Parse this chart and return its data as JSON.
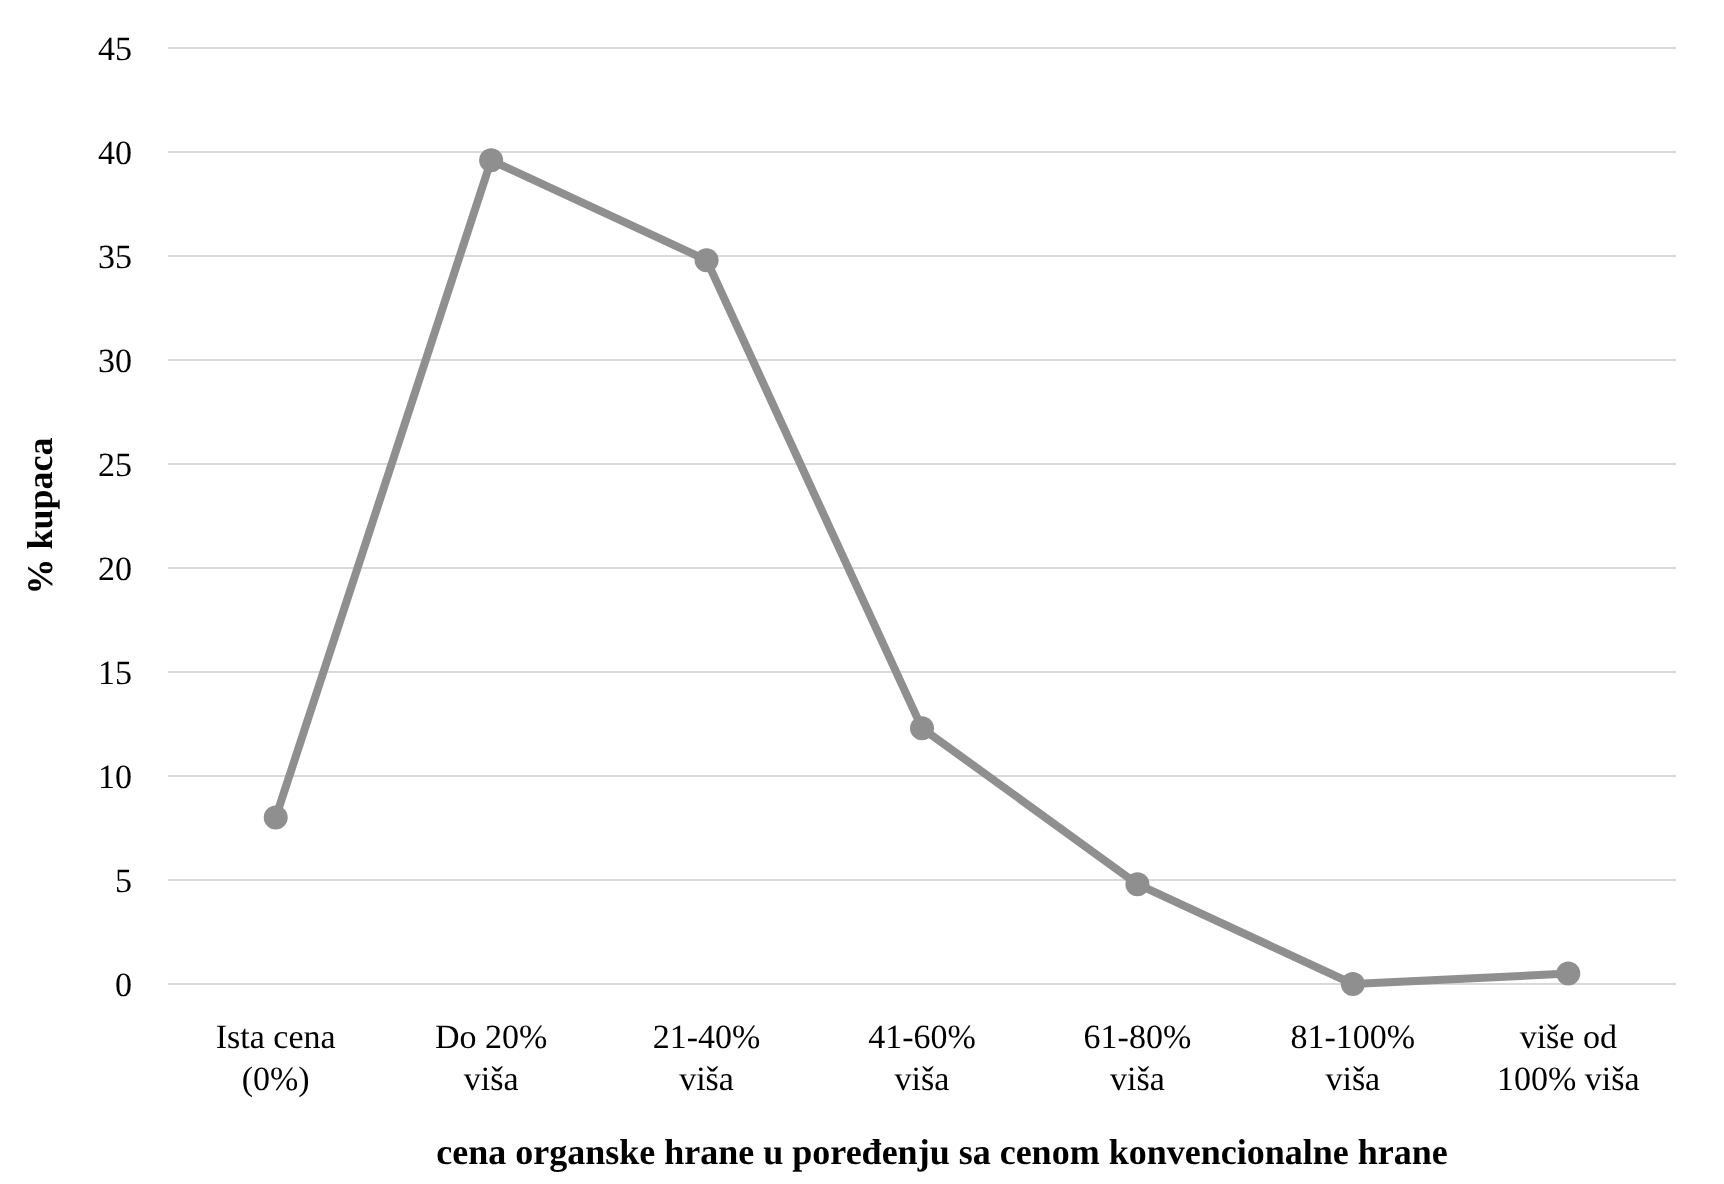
{
  "chart_data": {
    "type": "line",
    "xlabel": "cena organske hrane u poređenju sa cenom konvencionalne hrane",
    "ylabel": "% kupaca",
    "categories": [
      "Ista cena (0%)",
      "Do 20% viša",
      "21-40% viša",
      "41-60% viša",
      "61-80% viša",
      "81-100% viša",
      "više od 100% viša"
    ],
    "series": [
      {
        "color": "#8f8f8f",
        "values": [
          8,
          39.6,
          34.8,
          12.3,
          4.8,
          0,
          0.5
        ]
      }
    ],
    "ylim": [
      0,
      45
    ],
    "yticks": [
      0,
      5,
      10,
      15,
      20,
      25,
      30,
      35,
      40,
      45
    ],
    "grid": "y",
    "marker": "circle",
    "line_style": "solid"
  }
}
